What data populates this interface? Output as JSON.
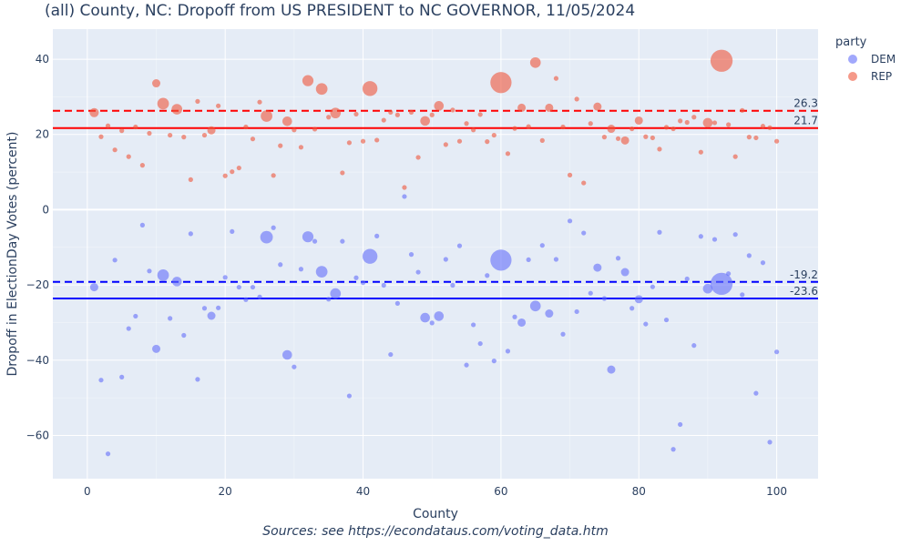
{
  "chart_data": {
    "type": "scatter",
    "title": "(all) County, NC: Dropoff from US PRESIDENT to NC GOVERNOR, 11/05/2024",
    "xlabel": "County",
    "ylabel": "Dropoff in ElectionDay Votes (percent)",
    "source": "Sources: see https://econdataus.com/voting_data.htm",
    "xlim": [
      -5,
      106
    ],
    "ylim": [
      -71.5,
      48
    ],
    "xticks": [
      0,
      20,
      40,
      60,
      80,
      100
    ],
    "xtick_labels": [
      "0",
      "20",
      "40",
      "60",
      "80",
      "100"
    ],
    "yticks": [
      -60,
      -40,
      -20,
      0,
      20,
      40
    ],
    "ytick_labels": [
      "−60",
      "−40",
      "−20",
      "0",
      "20",
      "40"
    ],
    "legend": {
      "title": "party",
      "placement": "top-right",
      "entries": [
        {
          "name": "DEM",
          "color": "#636efa"
        },
        {
          "name": "REP",
          "color": "#ef553b"
        }
      ]
    },
    "reference_lines": [
      {
        "series": "REP",
        "value": 26.3,
        "label": "26.3",
        "style": "dashed",
        "color": "#ff0000"
      },
      {
        "series": "REP",
        "value": 21.7,
        "label": "21.7",
        "style": "solid",
        "color": "#ff0000"
      },
      {
        "series": "DEM",
        "value": -19.2,
        "label": "-19.2",
        "style": "dashed",
        "color": "#0000ff"
      },
      {
        "series": "DEM",
        "value": -23.6,
        "label": "-23.6",
        "style": "solid",
        "color": "#0000ff"
      }
    ],
    "series": [
      {
        "name": "DEM",
        "color": "#636efa",
        "points": [
          [
            1,
            -20.6,
            1.3
          ],
          [
            2,
            -45.3,
            1
          ],
          [
            3,
            -64.9,
            1
          ],
          [
            4,
            -13.4,
            1
          ],
          [
            5,
            -44.5,
            1
          ],
          [
            6,
            -31.6,
            1
          ],
          [
            7,
            -28.3,
            1
          ],
          [
            8,
            -4.1,
            1
          ],
          [
            9,
            -16.3,
            1
          ],
          [
            10,
            -37,
            1.3
          ],
          [
            11,
            -17.4,
            2
          ],
          [
            12,
            -28.9,
            1
          ],
          [
            13,
            -19.1,
            1.6
          ],
          [
            14,
            -33.4,
            1
          ],
          [
            15,
            -6.4,
            1
          ],
          [
            16,
            -45.1,
            1
          ],
          [
            17,
            -26.2,
            1
          ],
          [
            18,
            -28.2,
            1.3
          ],
          [
            19,
            -26.1,
            1
          ],
          [
            20,
            -18,
            1
          ],
          [
            21,
            -5.8,
            1
          ],
          [
            22,
            -20.6,
            1
          ],
          [
            23,
            -23.9,
            1
          ],
          [
            24,
            -20.6,
            1
          ],
          [
            25,
            -23.2,
            1
          ],
          [
            26,
            -7.3,
            2.2
          ],
          [
            27,
            -4.8,
            1
          ],
          [
            28,
            -14.6,
            1
          ],
          [
            29,
            -38.6,
            1.6
          ],
          [
            30,
            -41.8,
            1
          ],
          [
            31,
            -15.8,
            1
          ],
          [
            32,
            -7.2,
            1.9
          ],
          [
            33,
            -8.4,
            1
          ],
          [
            34,
            -16.5,
            2
          ],
          [
            35,
            -23.8,
            1
          ],
          [
            36,
            -22.3,
            1.8
          ],
          [
            37,
            -8.4,
            1
          ],
          [
            38,
            -49.5,
            1
          ],
          [
            39,
            -18.1,
            1
          ],
          [
            40,
            -19.4,
            1
          ],
          [
            41,
            -12.4,
            2.7
          ],
          [
            42,
            -7,
            1
          ],
          [
            43,
            -20.1,
            1
          ],
          [
            44,
            -38.5,
            1
          ],
          [
            45,
            -24.9,
            1
          ],
          [
            46,
            3.5,
            1
          ],
          [
            47,
            -11.9,
            1
          ],
          [
            48,
            -16.6,
            1
          ],
          [
            49,
            -28.7,
            1.6
          ],
          [
            50,
            -30.1,
            1
          ],
          [
            51,
            -28.3,
            1.6
          ],
          [
            52,
            -13.2,
            1
          ],
          [
            53,
            -20.1,
            1
          ],
          [
            54,
            -9.6,
            1
          ],
          [
            55,
            -41.3,
            1
          ],
          [
            56,
            -30.6,
            1
          ],
          [
            57,
            -35.6,
            1
          ],
          [
            58,
            -17.5,
            1
          ],
          [
            59,
            -40.2,
            1
          ],
          [
            60,
            -13.4,
            4
          ],
          [
            61,
            -37.6,
            1
          ],
          [
            62,
            -28.5,
            1
          ],
          [
            63,
            -30,
            1.3
          ],
          [
            64,
            -13.3,
            1
          ],
          [
            65,
            -25.6,
            1.8
          ],
          [
            66,
            -9.5,
            1
          ],
          [
            67,
            -27.6,
            1.3
          ],
          [
            68,
            -13.2,
            1
          ],
          [
            69,
            -33.1,
            1
          ],
          [
            70,
            -3,
            1
          ],
          [
            71,
            -27.1,
            1
          ],
          [
            72,
            -6.2,
            1
          ],
          [
            73,
            -22.2,
            1
          ],
          [
            74,
            -15.4,
            1.3
          ],
          [
            75,
            -23.6,
            1
          ],
          [
            76,
            -42.5,
            1.3
          ],
          [
            77,
            -12.9,
            1
          ],
          [
            78,
            -16.6,
            1.3
          ],
          [
            79,
            -26.2,
            1
          ],
          [
            80,
            -23.8,
            1.3
          ],
          [
            81,
            -30.4,
            1
          ],
          [
            82,
            -20.5,
            1
          ],
          [
            83,
            -6,
            1
          ],
          [
            84,
            -29.3,
            1
          ],
          [
            85,
            -63.7,
            1
          ],
          [
            86,
            -57.1,
            1
          ],
          [
            87,
            -18.4,
            1
          ],
          [
            88,
            -36.1,
            1
          ],
          [
            89,
            -7.1,
            1
          ],
          [
            90,
            -21,
            1.6
          ],
          [
            91,
            -7.9,
            1
          ],
          [
            92,
            -19.7,
            4.2
          ],
          [
            93,
            -17,
            1
          ],
          [
            94,
            -6.6,
            1
          ],
          [
            95,
            -22.6,
            1
          ],
          [
            96,
            -12.2,
            1
          ],
          [
            97,
            -48.8,
            1
          ],
          [
            98,
            -14.1,
            1
          ],
          [
            99,
            -61.8,
            1
          ],
          [
            100,
            -37.8,
            1
          ]
        ]
      },
      {
        "name": "REP",
        "color": "#ef553b",
        "points": [
          [
            1,
            25.8,
            1.5
          ],
          [
            2,
            19.4,
            1
          ],
          [
            3,
            22.3,
            1
          ],
          [
            4,
            15.9,
            1
          ],
          [
            5,
            21,
            1
          ],
          [
            6,
            14.1,
            1
          ],
          [
            7,
            22,
            1
          ],
          [
            8,
            11.8,
            1
          ],
          [
            9,
            20.3,
            1
          ],
          [
            10,
            33.6,
            1.3
          ],
          [
            11,
            28.2,
            2
          ],
          [
            12,
            19.8,
            1
          ],
          [
            13,
            26.7,
            1.8
          ],
          [
            14,
            19.3,
            1
          ],
          [
            15,
            8,
            1
          ],
          [
            16,
            28.8,
            1
          ],
          [
            17,
            19.8,
            1
          ],
          [
            18,
            21.1,
            1.3
          ],
          [
            19,
            27.6,
            1
          ],
          [
            20,
            9,
            1
          ],
          [
            21,
            10.1,
            1
          ],
          [
            22,
            11.1,
            1
          ],
          [
            23,
            22,
            1
          ],
          [
            24,
            18.8,
            1
          ],
          [
            25,
            28.6,
            1
          ],
          [
            26,
            24.9,
            2
          ],
          [
            27,
            9.1,
            1
          ],
          [
            28,
            17,
            1
          ],
          [
            29,
            23.5,
            1.6
          ],
          [
            30,
            21.2,
            1
          ],
          [
            31,
            16.6,
            1
          ],
          [
            32,
            34.3,
            1.9
          ],
          [
            33,
            21.4,
            1
          ],
          [
            34,
            32.1,
            2
          ],
          [
            35,
            24.6,
            1
          ],
          [
            36,
            25.7,
            1.8
          ],
          [
            37,
            9.8,
            1
          ],
          [
            38,
            17.8,
            1
          ],
          [
            39,
            25.4,
            1
          ],
          [
            40,
            18.2,
            1
          ],
          [
            41,
            32.2,
            2.7
          ],
          [
            42,
            18.5,
            1
          ],
          [
            43,
            23.8,
            1
          ],
          [
            44,
            25.9,
            1
          ],
          [
            45,
            25.2,
            1
          ],
          [
            46,
            5.9,
            1
          ],
          [
            47,
            25.9,
            1
          ],
          [
            48,
            13.9,
            1
          ],
          [
            49,
            23.6,
            1.6
          ],
          [
            50,
            25.2,
            1
          ],
          [
            51,
            27.6,
            1.6
          ],
          [
            52,
            17.3,
            1
          ],
          [
            53,
            26.5,
            1
          ],
          [
            54,
            18.2,
            1
          ],
          [
            55,
            22.9,
            1
          ],
          [
            56,
            21.2,
            1
          ],
          [
            57,
            25.3,
            1
          ],
          [
            58,
            18.1,
            1
          ],
          [
            59,
            19.8,
            1
          ],
          [
            60,
            33.8,
            4
          ],
          [
            61,
            14.9,
            1
          ],
          [
            62,
            21.6,
            1
          ],
          [
            63,
            27.1,
            1.3
          ],
          [
            64,
            22.1,
            1
          ],
          [
            65,
            39.1,
            1.8
          ],
          [
            66,
            18.4,
            1
          ],
          [
            67,
            27.1,
            1.3
          ],
          [
            68,
            34.9,
            1
          ],
          [
            69,
            22,
            1
          ],
          [
            70,
            9.2,
            1
          ],
          [
            71,
            29.4,
            1
          ],
          [
            72,
            7.1,
            1
          ],
          [
            73,
            22.9,
            1
          ],
          [
            74,
            27.4,
            1.3
          ],
          [
            75,
            19.3,
            1
          ],
          [
            76,
            21.5,
            1.3
          ],
          [
            77,
            18.9,
            1
          ],
          [
            78,
            18.4,
            1.3
          ],
          [
            79,
            21.5,
            1
          ],
          [
            80,
            23.7,
            1.3
          ],
          [
            81,
            19.4,
            1
          ],
          [
            82,
            19.1,
            1
          ],
          [
            83,
            16.1,
            1
          ],
          [
            84,
            21.9,
            1
          ],
          [
            85,
            21.5,
            1
          ],
          [
            86,
            23.6,
            1
          ],
          [
            87,
            23.2,
            1
          ],
          [
            88,
            24.6,
            1
          ],
          [
            89,
            15.3,
            1
          ],
          [
            90,
            23.1,
            1.6
          ],
          [
            91,
            23.1,
            1
          ],
          [
            92,
            39.6,
            4.2
          ],
          [
            93,
            22.6,
            1
          ],
          [
            94,
            14.1,
            1
          ],
          [
            95,
            26.4,
            1
          ],
          [
            96,
            19.3,
            1
          ],
          [
            97,
            19.1,
            1
          ],
          [
            98,
            22.2,
            1
          ],
          [
            99,
            21.8,
            1
          ],
          [
            100,
            18.2,
            1
          ]
        ]
      }
    ]
  }
}
